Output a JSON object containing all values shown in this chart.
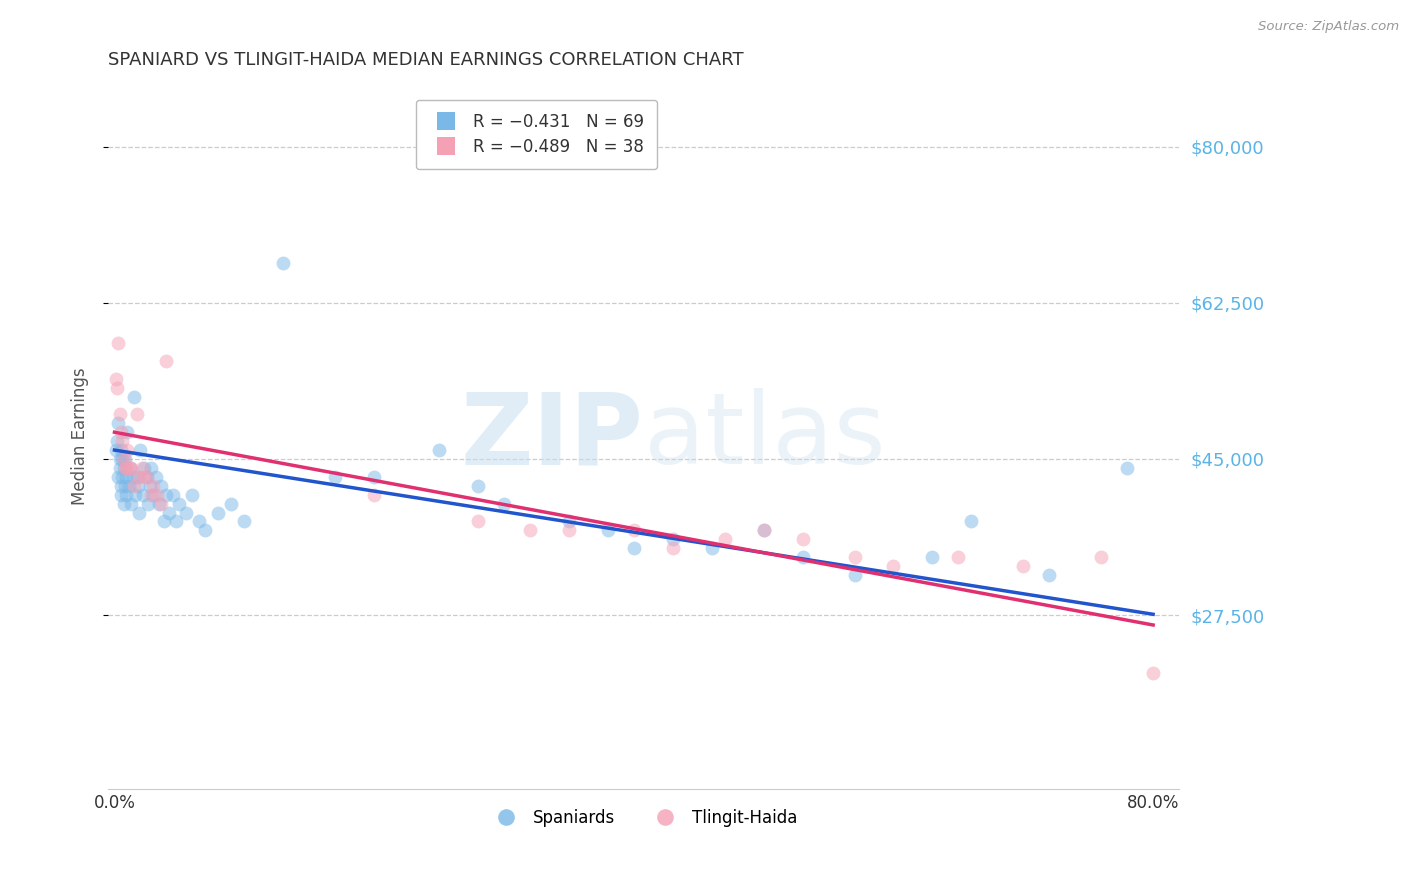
{
  "title": "SPANIARD VS TLINGIT-HAIDA MEDIAN EARNINGS CORRELATION CHART",
  "source": "Source: ZipAtlas.com",
  "ylabel": "Median Earnings",
  "xlim": [
    -0.005,
    0.82
  ],
  "ylim": [
    8000,
    87000
  ],
  "yticks": [
    27500,
    45000,
    62500,
    80000
  ],
  "xticks": [
    0.0,
    0.1,
    0.2,
    0.3,
    0.4,
    0.5,
    0.6,
    0.7,
    0.8
  ],
  "ytick_labels": [
    "$27,500",
    "$45,000",
    "$62,500",
    "$80,000"
  ],
  "spaniards_color": "#7ab8e8",
  "tlingit_color": "#f4a0b5",
  "line_spaniards_color": "#2255cc",
  "line_tlingit_color": "#e03070",
  "watermark_zip": "ZIP",
  "watermark_atlas": "atlas",
  "background_color": "#ffffff",
  "legend_r1": "R = −0.431   N = 69",
  "legend_r2": "R = −0.489   N = 38",
  "spaniards_x": [
    0.001,
    0.002,
    0.003,
    0.003,
    0.004,
    0.004,
    0.005,
    0.005,
    0.005,
    0.006,
    0.006,
    0.007,
    0.007,
    0.008,
    0.008,
    0.009,
    0.009,
    0.01,
    0.011,
    0.012,
    0.013,
    0.014,
    0.015,
    0.016,
    0.017,
    0.018,
    0.019,
    0.02,
    0.022,
    0.023,
    0.025,
    0.026,
    0.027,
    0.028,
    0.03,
    0.032,
    0.034,
    0.036,
    0.038,
    0.04,
    0.042,
    0.045,
    0.047,
    0.05,
    0.055,
    0.06,
    0.065,
    0.07,
    0.08,
    0.09,
    0.1,
    0.13,
    0.17,
    0.2,
    0.25,
    0.28,
    0.3,
    0.35,
    0.38,
    0.4,
    0.43,
    0.46,
    0.5,
    0.53,
    0.57,
    0.63,
    0.66,
    0.72,
    0.78
  ],
  "spaniards_y": [
    46000,
    47000,
    43000,
    49000,
    45000,
    44000,
    46000,
    42000,
    41000,
    45000,
    43000,
    44000,
    40000,
    42000,
    45000,
    43000,
    41000,
    48000,
    42000,
    44000,
    40000,
    43000,
    52000,
    41000,
    43000,
    42000,
    39000,
    46000,
    41000,
    44000,
    43000,
    40000,
    42000,
    44000,
    41000,
    43000,
    40000,
    42000,
    38000,
    41000,
    39000,
    41000,
    38000,
    40000,
    39000,
    41000,
    38000,
    37000,
    39000,
    40000,
    38000,
    67000,
    43000,
    43000,
    46000,
    42000,
    40000,
    38000,
    37000,
    35000,
    36000,
    35000,
    37000,
    34000,
    32000,
    34000,
    38000,
    32000,
    44000
  ],
  "tlingit_x": [
    0.001,
    0.002,
    0.003,
    0.004,
    0.005,
    0.006,
    0.007,
    0.008,
    0.009,
    0.01,
    0.012,
    0.013,
    0.015,
    0.017,
    0.019,
    0.021,
    0.023,
    0.025,
    0.028,
    0.03,
    0.033,
    0.036,
    0.04,
    0.2,
    0.28,
    0.32,
    0.35,
    0.4,
    0.43,
    0.47,
    0.5,
    0.53,
    0.57,
    0.6,
    0.65,
    0.7,
    0.76,
    0.8
  ],
  "tlingit_y": [
    54000,
    53000,
    58000,
    50000,
    48000,
    47000,
    45000,
    44000,
    44000,
    46000,
    44000,
    44000,
    42000,
    50000,
    43000,
    44000,
    43000,
    43000,
    41000,
    42000,
    41000,
    40000,
    56000,
    41000,
    38000,
    37000,
    37000,
    37000,
    35000,
    36000,
    37000,
    36000,
    34000,
    33000,
    34000,
    33000,
    34000,
    21000
  ],
  "marker_size": 100,
  "marker_alpha": 0.5,
  "line_intercept_s": 46000,
  "line_slope_s": -23000,
  "line_intercept_t": 48000,
  "line_slope_t": -27000
}
